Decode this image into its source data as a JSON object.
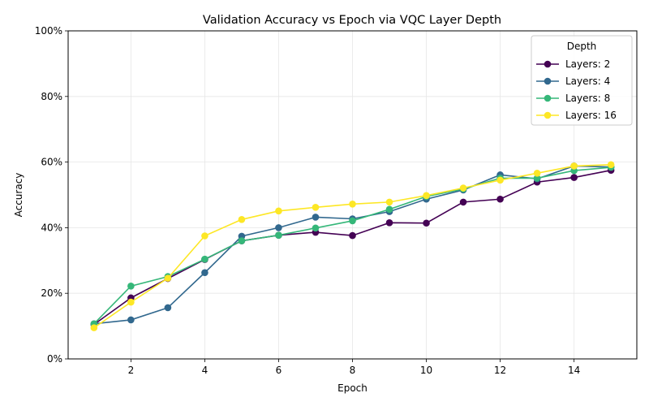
{
  "chart_data": {
    "type": "line",
    "title": "Validation Accuracy vs Epoch via VQC Layer Depth",
    "xlabel": "Epoch",
    "ylabel": "Accuracy",
    "xlim": [
      0.3,
      15.7
    ],
    "ylim": [
      0,
      1.0
    ],
    "xticks": [
      2,
      4,
      6,
      8,
      10,
      12,
      14
    ],
    "yticks": [
      0,
      0.2,
      0.4,
      0.6,
      0.8,
      1.0
    ],
    "ytick_labels": [
      "0%",
      "20%",
      "40%",
      "60%",
      "80%",
      "100%"
    ],
    "grid": true,
    "legend": {
      "title": "Depth",
      "placement": "top-right"
    },
    "x": [
      1,
      2,
      3,
      4,
      5,
      6,
      7,
      8,
      9,
      10,
      11,
      12,
      13,
      14,
      15
    ],
    "series": [
      {
        "name": "Layers: 2",
        "color": "#440154",
        "values": [
          0.105,
          0.186,
          0.245,
          0.303,
          0.36,
          0.377,
          0.386,
          0.376,
          0.415,
          0.414,
          0.478,
          0.487,
          0.539,
          0.553,
          0.575
        ]
      },
      {
        "name": "Layers: 4",
        "color": "#31688e",
        "values": [
          0.107,
          0.119,
          0.156,
          0.263,
          0.374,
          0.4,
          0.432,
          0.427,
          0.449,
          0.487,
          0.515,
          0.561,
          0.549,
          0.588,
          0.585
        ]
      },
      {
        "name": "Layers: 8",
        "color": "#35b779",
        "values": [
          0.107,
          0.222,
          0.251,
          0.304,
          0.36,
          0.377,
          0.399,
          0.421,
          0.456,
          0.495,
          0.518,
          0.551,
          0.551,
          0.574,
          0.584
        ]
      },
      {
        "name": "Layers: 16",
        "color": "#fde725",
        "values": [
          0.095,
          0.173,
          0.246,
          0.375,
          0.425,
          0.451,
          0.462,
          0.472,
          0.478,
          0.498,
          0.521,
          0.545,
          0.566,
          0.588,
          0.592
        ]
      }
    ]
  }
}
